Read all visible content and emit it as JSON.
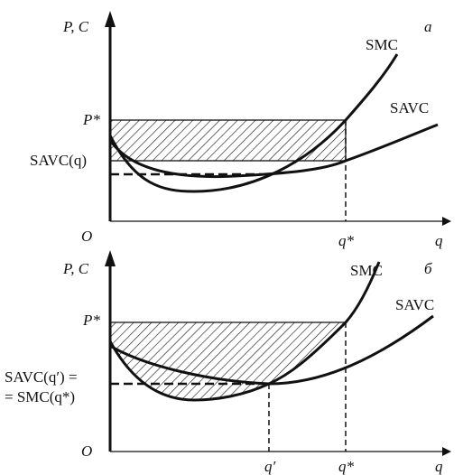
{
  "panels": [
    {
      "axis_y": "P, C",
      "tag": "a",
      "smc": "SMC",
      "savc": "SAVC",
      "price": "P*",
      "level": "SAVC(q)",
      "origin": "O",
      "q_star": "q*",
      "axis_x": "q"
    },
    {
      "axis_y": "P, C",
      "tag": "б",
      "smc": "SMC",
      "savc": "SAVC",
      "price": "P*",
      "level_1": "SAVC(q′) =",
      "level_2": "= SMC(q*)",
      "origin": "O",
      "q_prime": "q′",
      "q_star": "q*",
      "axis_x": "q"
    }
  ]
}
